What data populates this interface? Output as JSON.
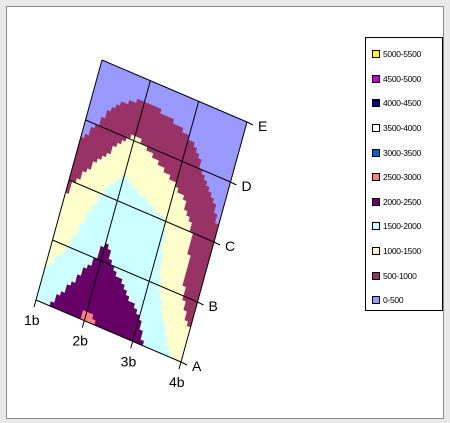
{
  "chart_data": {
    "type": "surface",
    "view": "3-D surface chart, top-down (contour) view, rotated",
    "x_categories": [
      "1b",
      "2b",
      "3b",
      "4b"
    ],
    "y_series": [
      "A",
      "B",
      "C",
      "D",
      "E"
    ],
    "z_values": [
      [
        1800,
        2600,
        2200,
        1300
      ],
      [
        1200,
        2100,
        1700,
        700
      ],
      [
        900,
        1800,
        1500,
        600
      ],
      [
        300,
        1100,
        700,
        200
      ],
      [
        200,
        200,
        200,
        200
      ]
    ],
    "legend": {
      "position": "right",
      "entries": [
        {
          "label": "5000-5500",
          "color": "#ffff00"
        },
        {
          "label": "4500-5000",
          "color": "#cc00cc"
        },
        {
          "label": "4000-4500",
          "color": "#000080"
        },
        {
          "label": "3500-4000",
          "color": "#ffffff"
        },
        {
          "label": "3000-3500",
          "color": "#0066cc"
        },
        {
          "label": "2500-3000",
          "color": "#ff8080"
        },
        {
          "label": "2000-2500",
          "color": "#660066"
        },
        {
          "label": "1500-2000",
          "color": "#ccffff"
        },
        {
          "label": "1000-1500",
          "color": "#ffffcc"
        },
        {
          "label": "500-1000",
          "color": "#993366"
        },
        {
          "label": "0-500",
          "color": "#9999ff"
        }
      ]
    }
  }
}
